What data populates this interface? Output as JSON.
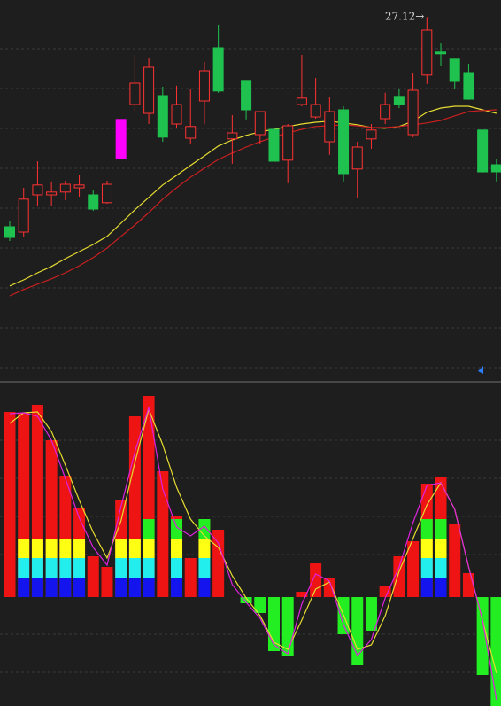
{
  "chart_data": [
    {
      "type": "candlestick",
      "annotation": "27.12→",
      "ylim": [
        16.85,
        27.6
      ],
      "up_color": "#ff3232",
      "down_color": "#1fc24f",
      "highlight": {
        "index": 8,
        "color": "#ff00ff"
      },
      "open": [
        21.2,
        21.05,
        22.1,
        22.1,
        22.18,
        22.3,
        22.1,
        21.88,
        23.13,
        24.65,
        24.4,
        24.9,
        24.1,
        23.7,
        24.75,
        26.25,
        23.68,
        25.33,
        23.8,
        23.95,
        23.08,
        24.65,
        24.3,
        23.6,
        24.5,
        22.83,
        23.68,
        24.25,
        24.88,
        23.8,
        25.48,
        26.13,
        25.93,
        25.55,
        23.93,
        22.95
      ],
      "high": [
        21.35,
        22.3,
        23.05,
        22.48,
        22.5,
        22.65,
        22.23,
        22.5,
        24.23,
        26.05,
        25.95,
        25.15,
        25.18,
        25.1,
        25.85,
        26.9,
        24.35,
        25.33,
        24.45,
        24.35,
        24.1,
        26.05,
        25.4,
        24.85,
        24.6,
        23.6,
        24.1,
        24.98,
        25.1,
        25.55,
        27.12,
        26.4,
        25.93,
        25.8,
        23.93,
        23.1
      ],
      "low": [
        20.8,
        20.9,
        21.8,
        21.78,
        21.95,
        22.05,
        21.65,
        21.85,
        23.13,
        24.4,
        24.1,
        23.6,
        23.98,
        23.55,
        24.1,
        24.98,
        22.98,
        24.23,
        23.55,
        22.98,
        22.43,
        24.6,
        24.25,
        23.23,
        22.48,
        22.0,
        23.4,
        24.1,
        24.55,
        23.73,
        25.23,
        25.73,
        25.1,
        24.78,
        22.73,
        22.48
      ],
      "close": [
        20.9,
        21.98,
        22.38,
        22.18,
        22.4,
        22.38,
        21.7,
        22.4,
        24.23,
        25.25,
        25.7,
        23.73,
        24.65,
        24.03,
        25.6,
        25.03,
        23.85,
        24.5,
        24.45,
        23.05,
        24.05,
        24.83,
        24.65,
        24.45,
        22.7,
        23.45,
        23.93,
        24.65,
        24.65,
        25.05,
        26.75,
        26.08,
        25.3,
        24.8,
        22.75,
        22.75
      ],
      "lines": [
        {
          "color": "#e6dc32",
          "values": [
            19.53,
            19.7,
            19.9,
            20.08,
            20.3,
            20.5,
            20.7,
            20.93,
            21.3,
            21.68,
            22.03,
            22.38,
            22.65,
            22.93,
            23.2,
            23.48,
            23.65,
            23.78,
            23.88,
            23.95,
            24.03,
            24.1,
            24.15,
            24.18,
            24.13,
            24.08,
            24.0,
            23.98,
            24.03,
            24.18,
            24.43,
            24.55,
            24.6,
            24.6,
            24.5,
            24.4
          ]
        },
        {
          "color": "#c82020",
          "values": [
            19.25,
            19.43,
            19.58,
            19.73,
            19.9,
            20.1,
            20.33,
            20.6,
            20.93,
            21.25,
            21.6,
            21.98,
            22.3,
            22.6,
            22.85,
            23.1,
            23.28,
            23.45,
            23.6,
            23.73,
            23.85,
            23.95,
            24.03,
            24.05,
            24.08,
            24.05,
            24.0,
            24.0,
            24.03,
            24.08,
            24.13,
            24.2,
            24.33,
            24.45,
            24.48,
            24.5
          ]
        }
      ]
    },
    {
      "type": "bar",
      "ylim": [
        -12.3,
        24.2
      ],
      "pos_color": "#ee1414",
      "neg_color": "#22ee22",
      "values": [
        20.9,
        20.8,
        21.7,
        17.7,
        13.7,
        10.1,
        4.6,
        3.4,
        10.9,
        20.4,
        22.7,
        14.2,
        9.2,
        4.4,
        8.7,
        7.6,
        0,
        -0.7,
        -1.8,
        -6.1,
        -6.6,
        0.6,
        3.8,
        2.2,
        -4.2,
        -7.7,
        -3.8,
        1.3,
        4.6,
        6.3,
        12.8,
        13.5,
        8.3,
        2.7,
        -8.8,
        -12.3
      ],
      "bands": [
        {
          "color": "#1414ee",
          "values": [
            null,
            2.2,
            2.2,
            2.2,
            2.2,
            2.2,
            null,
            null,
            2.2,
            2.2,
            2.2,
            null,
            2.2,
            null,
            2.2,
            null,
            null,
            null,
            null,
            null,
            null,
            null,
            null,
            null,
            null,
            null,
            null,
            null,
            null,
            null,
            2.2,
            2.2,
            null,
            null,
            null,
            null
          ]
        },
        {
          "color": "#22eeee",
          "values": [
            null,
            2.2,
            2.2,
            2.2,
            2.2,
            2.2,
            null,
            null,
            2.2,
            2.2,
            2.2,
            null,
            2.2,
            null,
            2.2,
            null,
            null,
            null,
            null,
            null,
            null,
            null,
            null,
            null,
            null,
            null,
            null,
            null,
            null,
            null,
            2.2,
            2.2,
            null,
            null,
            null,
            null
          ]
        },
        {
          "color": "#ffff14",
          "values": [
            null,
            2.2,
            2.2,
            2.2,
            2.2,
            2.2,
            null,
            null,
            2.2,
            2.2,
            2.2,
            null,
            2.2,
            null,
            2.2,
            null,
            null,
            null,
            null,
            null,
            null,
            null,
            null,
            null,
            null,
            null,
            null,
            null,
            null,
            null,
            2.2,
            2.2,
            null,
            null,
            null,
            null
          ]
        },
        {
          "color": "#22ee22",
          "values": [
            null,
            null,
            null,
            null,
            null,
            null,
            null,
            null,
            null,
            null,
            2.2,
            null,
            2.2,
            null,
            2.2,
            null,
            null,
            null,
            null,
            null,
            null,
            null,
            null,
            null,
            null,
            null,
            null,
            null,
            null,
            null,
            2.2,
            2.2,
            null,
            null,
            null,
            null
          ]
        }
      ],
      "lines": [
        {
          "color": "#e6dc32",
          "values": [
            19.6,
            20.8,
            20.9,
            18.7,
            14.9,
            10.9,
            7.3,
            4.4,
            8.6,
            15.2,
            21.2,
            17.2,
            12.4,
            8.8,
            6.9,
            5.6,
            2.4,
            -0.1,
            -2.1,
            -5.1,
            -5.9,
            -2.6,
            0.9,
            1.7,
            -2.0,
            -5.9,
            -5.4,
            -2.1,
            2.9,
            6.6,
            10.4,
            12.9,
            9.9,
            3.4,
            -2.6,
            -8.6
          ]
        },
        {
          "color": "#dd22dd",
          "values": [
            20.7,
            20.8,
            20.4,
            17.7,
            13.4,
            8.9,
            5.6,
            3.6,
            10.2,
            16.4,
            21.4,
            12.2,
            7.9,
            6.9,
            8.0,
            6.1,
            1.4,
            -0.6,
            -2.4,
            -5.4,
            -6.4,
            -0.8,
            2.6,
            1.8,
            -3.1,
            -6.6,
            -4.8,
            -0.1,
            3.4,
            8.4,
            12.6,
            12.9,
            9.9,
            3.4,
            -2.6,
            -11.6
          ]
        }
      ]
    }
  ]
}
